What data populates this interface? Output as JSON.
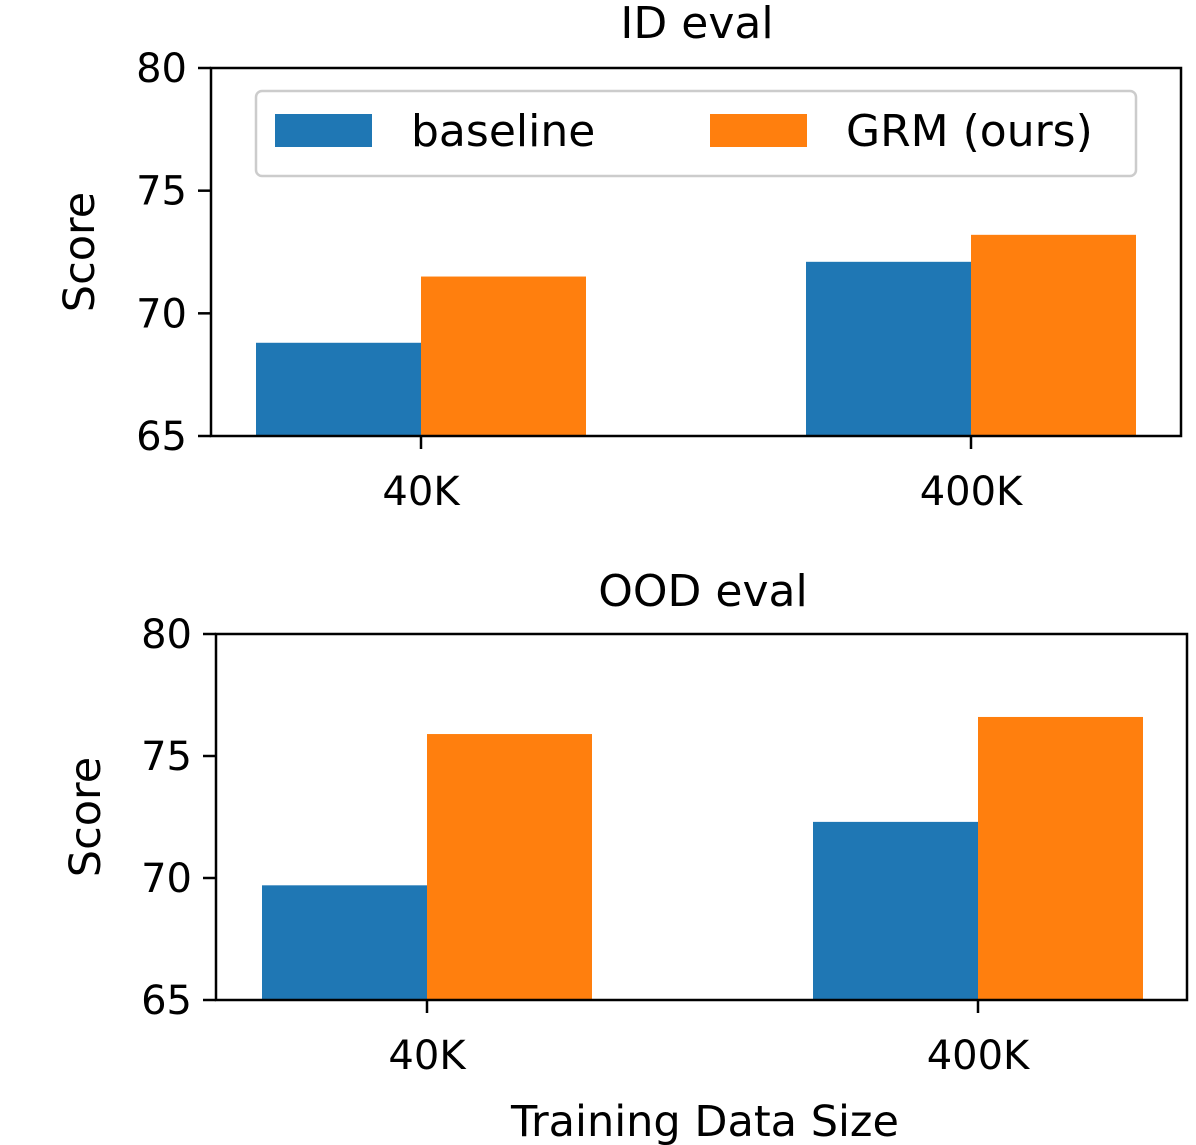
{
  "chart_data": [
    {
      "type": "bar",
      "title": "ID eval",
      "xlabel": "",
      "ylabel": "Score",
      "categories": [
        "40K",
        "400K"
      ],
      "ylim": [
        65,
        80
      ],
      "yticks": [
        "65",
        "70",
        "75",
        "80"
      ],
      "grid": false,
      "legend_position": "top",
      "series": [
        {
          "name": "baseline",
          "color": "#1f77b4",
          "values": [
            68.8,
            72.1
          ]
        },
        {
          "name": "GRM (ours)",
          "color": "#ff7f0e",
          "values": [
            71.5,
            73.2
          ]
        }
      ]
    },
    {
      "type": "bar",
      "title": "OOD eval",
      "xlabel": "Training Data Size",
      "ylabel": "Score",
      "categories": [
        "40K",
        "400K"
      ],
      "ylim": [
        65,
        80
      ],
      "yticks": [
        "65",
        "70",
        "75",
        "80"
      ],
      "grid": false,
      "series": [
        {
          "name": "baseline",
          "color": "#1f77b4",
          "values": [
            69.7,
            72.3
          ]
        },
        {
          "name": "GRM (ours)",
          "color": "#ff7f0e",
          "values": [
            75.9,
            76.6
          ]
        }
      ]
    }
  ]
}
